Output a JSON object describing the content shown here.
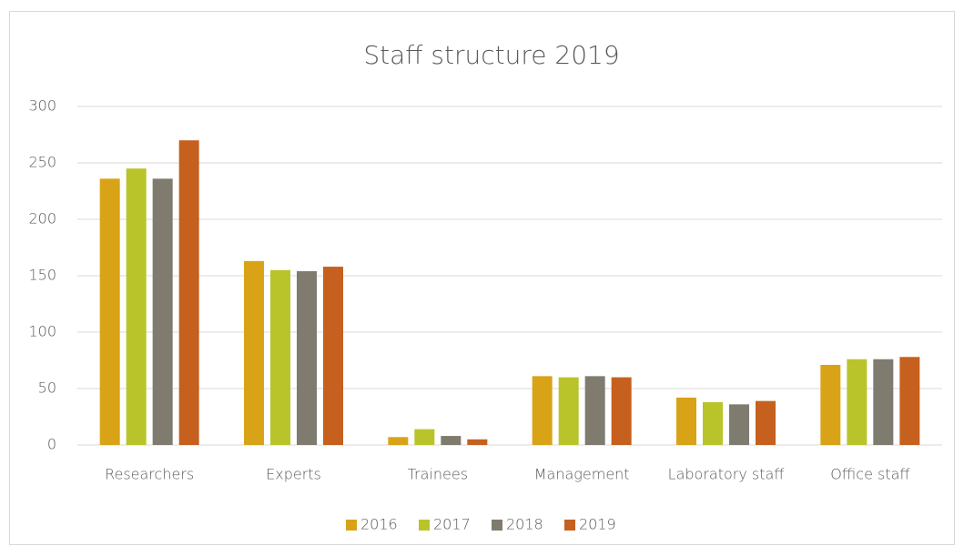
{
  "chart_data": {
    "type": "bar",
    "title": "Staff structure 2019",
    "categories": [
      "Researchers",
      "Experts",
      "Trainees",
      "Management",
      "Laboratory staff",
      "Office staff"
    ],
    "series": [
      {
        "name": "2016",
        "color": "#d9a318",
        "values": [
          236,
          163,
          7,
          61,
          42,
          71
        ]
      },
      {
        "name": "2017",
        "color": "#b9c42a",
        "values": [
          245,
          155,
          14,
          60,
          38,
          76
        ]
      },
      {
        "name": "2018",
        "color": "#7f7b6e",
        "values": [
          236,
          154,
          8,
          61,
          36,
          76
        ]
      },
      {
        "name": "2019",
        "color": "#c5601f",
        "values": [
          270,
          158,
          5,
          60,
          39,
          78
        ]
      }
    ],
    "ylim": [
      0,
      300
    ],
    "yticks": [
      0,
      50,
      100,
      150,
      200,
      250,
      300
    ],
    "grid": true,
    "legend": "bottom"
  }
}
